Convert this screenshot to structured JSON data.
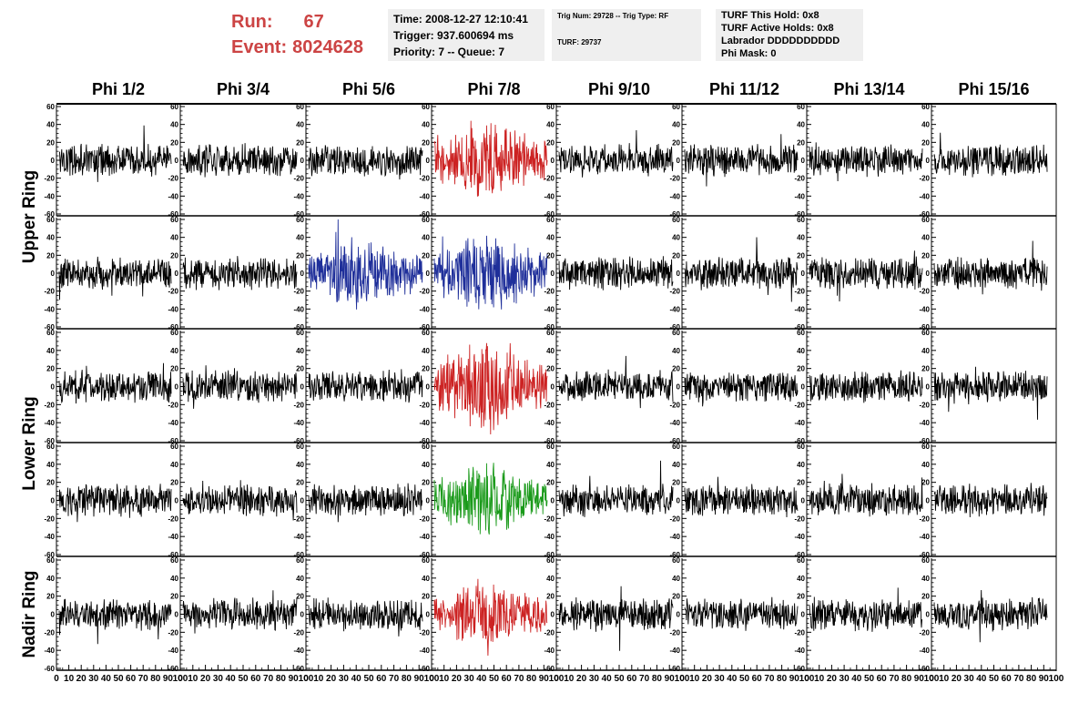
{
  "header": {
    "run_label": "Run:",
    "run_value": "67",
    "event_label": "Event:",
    "event_value": "8024628"
  },
  "info_time": {
    "time": "Time: 2008-12-27 12:10:41",
    "trigger": "Trigger: 937.600694 ms",
    "priority": "Priority: 7 -- Queue: 7"
  },
  "info_trig": {
    "trig": "Trig Num: 29728 -- Trig Type: RF",
    "turf": "TURF: 29737"
  },
  "info_turf": {
    "hold": "TURF This Hold: 0x8",
    "active": "TURF Active Holds: 0x8",
    "labrador": "Labrador DDDDDDDDDD",
    "phimask": "Phi Mask: 0"
  },
  "colors": {
    "header_red": "#cc4444",
    "default_trace": "#000000",
    "red_trace": "#cc2222",
    "blue_trace": "#1f2f9a",
    "green_trace": "#1a9a1a"
  },
  "chart_data": {
    "type": "line",
    "column_titles": [
      "Phi 1/2",
      "Phi 3/4",
      "Phi 5/6",
      "Phi 7/8",
      "Phi 9/10",
      "Phi 11/12",
      "Phi 13/14",
      "Phi 15/16"
    ],
    "row_titles": [
      {
        "label": "Upper Ring",
        "rows": [
          0,
          1
        ]
      },
      {
        "label": "Lower Ring",
        "rows": [
          2,
          3
        ]
      },
      {
        "label": "Nadir Ring",
        "rows": [
          4,
          4
        ]
      }
    ],
    "ylim": [
      -60,
      60
    ],
    "xlim": [
      0,
      100
    ],
    "y_ticks": [
      -60,
      -40,
      -20,
      0,
      20,
      40,
      60
    ],
    "x_ticks": [
      0,
      10,
      20,
      30,
      40,
      50,
      60,
      70,
      80,
      90,
      100
    ],
    "samples_per_trace": 260,
    "highlighted": [
      {
        "row": 0,
        "col": 3,
        "color": "red",
        "amplitude": 28
      },
      {
        "row": 1,
        "col": 2,
        "color": "blue",
        "amplitude": 24
      },
      {
        "row": 1,
        "col": 3,
        "color": "blue",
        "amplitude": 28
      },
      {
        "row": 2,
        "col": 3,
        "color": "red",
        "amplitude": 30
      },
      {
        "row": 3,
        "col": 3,
        "color": "green",
        "amplitude": 24
      },
      {
        "row": 4,
        "col": 3,
        "color": "red",
        "amplitude": 22
      }
    ],
    "default_amplitude": 14
  }
}
